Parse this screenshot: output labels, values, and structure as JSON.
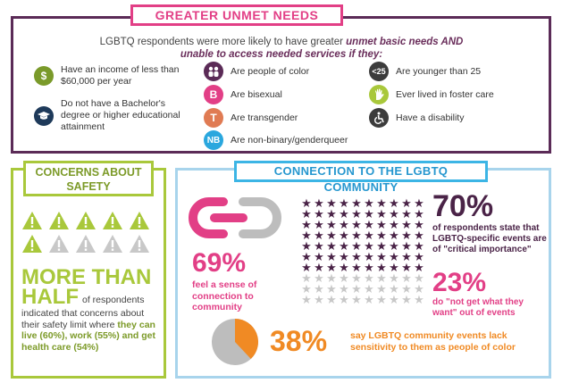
{
  "unmet_needs": {
    "title": "GREATER UNMET NEEDS",
    "intro_plain": "LGBTQ respondents were more likely to have greater",
    "intro_emph": "unmet basic needs AND unable to access needed services",
    "intro_emph2": "if they:",
    "items": [
      {
        "icon": "dollar-icon",
        "glyph": "$",
        "color": "#7a9a2a",
        "label": "Have an income of less than $60,000 per year"
      },
      {
        "icon": "graduation-cap-icon",
        "glyph": "🎓",
        "color": "#1e3a5a",
        "label": "Do not have a Bachelor's degree or higher educational attainment"
      },
      {
        "icon": "people-icon",
        "glyph": "●",
        "color": "#5b2b57",
        "label": "Are people of color"
      },
      {
        "icon": "bisexual-b-icon",
        "glyph": "B",
        "color": "#e23f86",
        "label": "Are bisexual"
      },
      {
        "icon": "transgender-t-icon",
        "glyph": "T",
        "color": "#e07b53",
        "label": "Are transgender"
      },
      {
        "icon": "nonbinary-nb-icon",
        "glyph": "NB",
        "color": "#2aa7de",
        "label": "Are non-binary/genderqueer"
      },
      {
        "icon": "under-25-icon",
        "glyph": "<25",
        "color": "#3c3c3c",
        "label": "Are younger than 25"
      },
      {
        "icon": "hand-icon",
        "glyph": "✋",
        "color": "#a9c83b",
        "label": "Ever lived in foster care"
      },
      {
        "icon": "wheelchair-icon",
        "glyph": "♿",
        "color": "#3c3c3c",
        "label": "Have a disability"
      }
    ]
  },
  "safety": {
    "title": "CONCERNS ABOUT SAFETY",
    "big_1": "MORE THAN",
    "big_2": "HALF",
    "text_inline": "of respondents",
    "text_body": "indicated that concerns about their safety limit where",
    "text_emph": "they can live (60%), work (55%) and get health care (54%)",
    "warning_filled": 6,
    "warning_total": 10
  },
  "community": {
    "title": "CONNECTION TO THE LGBTQ COMMUNITY",
    "stat1_value": "69%",
    "stat1_text": "feel a sense of connection to community",
    "stat1_fraction": 0.69,
    "stat2_value": "70%",
    "stat2_text": "of respondents state that LGBTQ-specific events are of \"critical importance\"",
    "stat2_fraction": 0.7,
    "stat3_value": "23%",
    "stat3_text": "do \"not get what they want\" out of events",
    "stat3_fraction": 0.23,
    "stat4_value": "38%",
    "stat4_text": "say LGBTQ community events lack sensitivity to them as people of color",
    "stat4_fraction": 0.38
  },
  "colors": {
    "purple": "#5b2b57",
    "pink": "#e23f86",
    "green": "#a9c83b",
    "blue": "#3cb5e5",
    "orange": "#f08a24",
    "gray": "#bdbdbd"
  }
}
